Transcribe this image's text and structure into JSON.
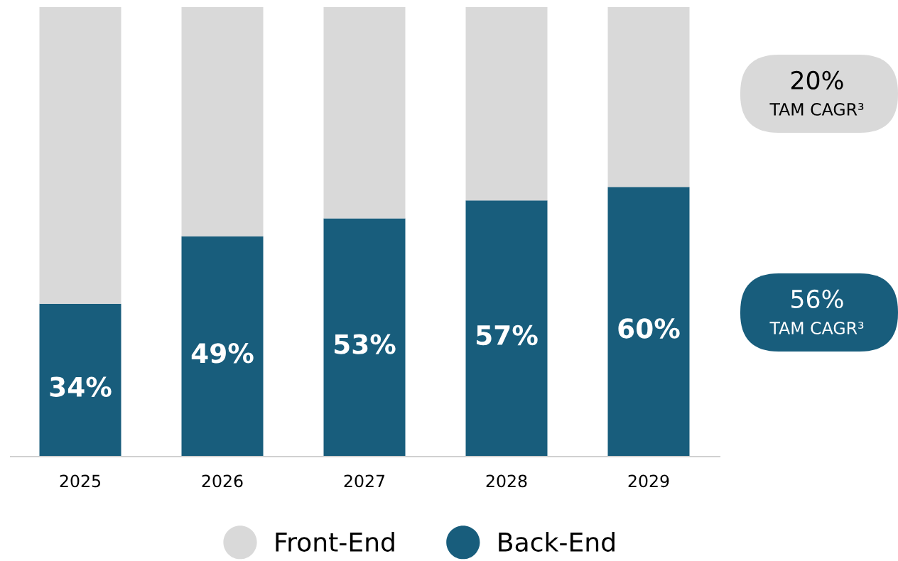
{
  "chart_data": {
    "type": "bar",
    "stacked": true,
    "categories": [
      "2025",
      "2026",
      "2027",
      "2028",
      "2029"
    ],
    "series": [
      {
        "name": "Back-End",
        "color": "#185d7c",
        "values": [
          34,
          49,
          53,
          57,
          60
        ],
        "value_labels": [
          "34%",
          "49%",
          "53%",
          "57%",
          "60%"
        ]
      },
      {
        "name": "Front-End",
        "color": "#d9d9d9",
        "values": [
          66,
          51,
          47,
          43,
          40
        ]
      }
    ],
    "annotations": [
      "20%\nTAM CAGR³",
      "56%\nTAM CAGR³"
    ],
    "legend": "bottom",
    "grid": false
  }
}
